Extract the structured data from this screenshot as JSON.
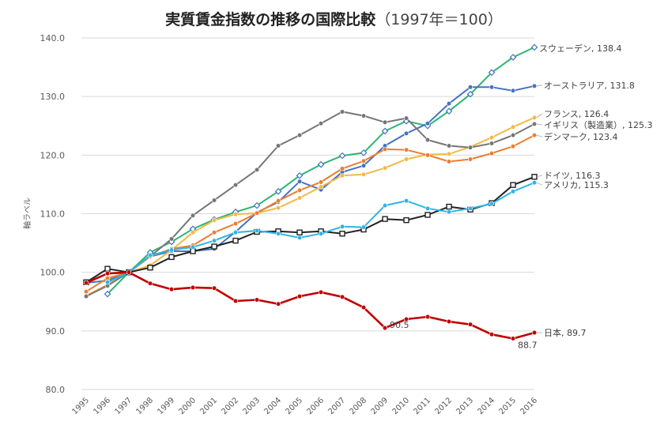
{
  "chart_data": {
    "type": "line",
    "title": "実質賃金指数の推移の国際比較",
    "subtitle": "（1997年＝100）",
    "xlabel": "",
    "ylabel": "軸ラベル",
    "ylim": [
      80,
      140
    ],
    "yticks": [
      "80.0",
      "90.0",
      "100.0",
      "110.0",
      "120.0",
      "130.0",
      "140.0"
    ],
    "grid": true,
    "x": [
      "1995",
      "1996",
      "1997",
      "1998",
      "1999",
      "2000",
      "2001",
      "2002",
      "2003",
      "2004",
      "2005",
      "2006",
      "2007",
      "2008",
      "2009",
      "2010",
      "2011",
      "2012",
      "2013",
      "2014",
      "2015",
      "2016"
    ],
    "series": [
      {
        "name": "スウェーデン",
        "end_label": "スウェーデン, 138.4",
        "color": "#2bb673",
        "marker": "diamond-open",
        "values": [
          null,
          96.3,
          100.0,
          103.4,
          105.2,
          107.4,
          109.0,
          110.3,
          111.4,
          113.8,
          116.5,
          118.4,
          119.9,
          120.4,
          124.1,
          125.8,
          125.0,
          127.5,
          130.4,
          134.1,
          136.7,
          138.4
        ]
      },
      {
        "name": "オーストラリア",
        "end_label": "オーストラリア, 131.8",
        "color": "#4472c4",
        "marker": "dot",
        "values": [
          98.2,
          98.6,
          100.0,
          102.7,
          103.6,
          103.6,
          104.0,
          106.9,
          110.2,
          112.0,
          115.5,
          114.1,
          117.1,
          118.2,
          121.6,
          123.7,
          125.4,
          128.8,
          131.6,
          131.6,
          131.0,
          131.8
        ]
      },
      {
        "name": "フランス",
        "end_label": "フランス, 126.4",
        "color": "#f4b942",
        "marker": "dot",
        "values": [
          96.0,
          97.9,
          100.0,
          101.2,
          103.8,
          106.8,
          108.9,
          109.9,
          110.1,
          111.0,
          112.7,
          114.6,
          116.5,
          116.7,
          117.8,
          119.3,
          120.1,
          120.2,
          121.4,
          123.0,
          124.8,
          126.4
        ]
      },
      {
        "name": "イギリス（製造業）",
        "end_label": "イギリス（製造業）, 125.3",
        "color": "#767676",
        "marker": "dot",
        "values": [
          95.9,
          97.7,
          100.0,
          102.7,
          105.7,
          109.7,
          112.3,
          114.9,
          117.5,
          121.6,
          123.4,
          125.4,
          127.4,
          126.7,
          125.6,
          126.3,
          122.6,
          121.6,
          121.3,
          122.0,
          123.4,
          125.3
        ]
      },
      {
        "name": "デンマーク",
        "end_label": "デンマーク, 123.4",
        "color": "#ed7d31",
        "marker": "dot",
        "values": [
          96.7,
          99.0,
          100.0,
          102.7,
          104.0,
          104.6,
          106.8,
          108.3,
          110.1,
          112.2,
          114.0,
          115.4,
          117.7,
          119.0,
          121.0,
          120.9,
          120.0,
          118.9,
          119.3,
          120.3,
          121.5,
          123.4
        ]
      },
      {
        "name": "ドイツ",
        "end_label": "ドイツ, 116.3",
        "color": "#222222",
        "marker": "square-open",
        "values": [
          98.3,
          100.6,
          100.0,
          100.8,
          102.6,
          103.6,
          104.4,
          105.4,
          106.9,
          107.0,
          106.8,
          107.0,
          106.6,
          107.3,
          109.1,
          108.9,
          109.8,
          111.2,
          110.7,
          111.8,
          114.9,
          116.3
        ]
      },
      {
        "name": "アメリカ",
        "end_label": "アメリカ, 115.3",
        "color": "#2eb4e8",
        "marker": "dot",
        "values": [
          null,
          98.3,
          100.0,
          102.9,
          103.8,
          104.3,
          105.4,
          106.8,
          107.1,
          106.6,
          105.9,
          106.6,
          107.8,
          107.7,
          111.4,
          112.2,
          110.9,
          110.3,
          110.9,
          111.7,
          113.8,
          115.3
        ]
      },
      {
        "name": "日本",
        "end_label": "日本, 89.7",
        "color": "#c00000",
        "marker": "dot",
        "values": [
          98.2,
          99.8,
          100.0,
          98.1,
          97.1,
          97.4,
          97.3,
          95.1,
          95.3,
          94.6,
          95.9,
          96.6,
          95.8,
          94.0,
          90.5,
          92.0,
          92.4,
          91.6,
          91.1,
          89.4,
          88.7,
          89.7
        ]
      }
    ],
    "annotations": [
      {
        "text": "90.5",
        "series": "日本",
        "x": "2009"
      },
      {
        "text": "88.7",
        "series": "日本",
        "x": "2015"
      }
    ]
  }
}
